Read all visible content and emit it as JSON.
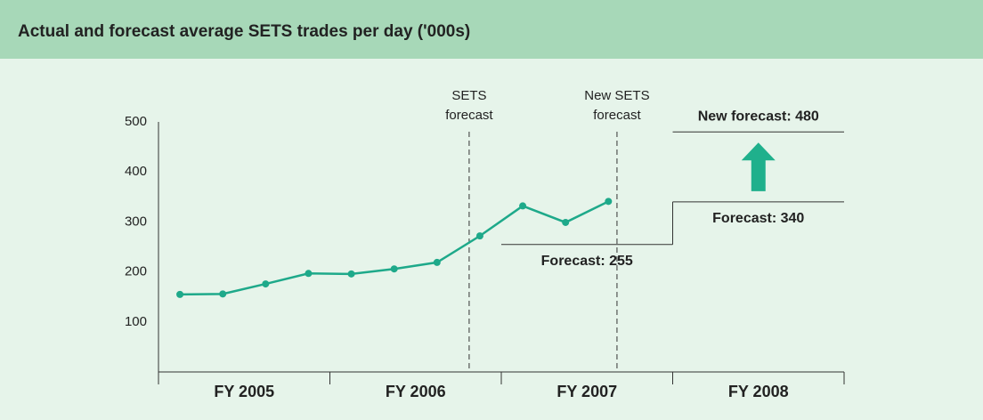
{
  "chart_data": {
    "type": "line",
    "title": "Actual and forecast average SETS trades per day ('000s)",
    "categories": [
      "FY 2005",
      "FY 2006",
      "FY 2007",
      "FY 2008"
    ],
    "x": [
      0.5,
      1.5,
      2.5,
      3.5,
      4.5,
      5.5,
      6.5,
      7.5,
      8.5,
      9.5,
      10.5
    ],
    "xlim": [
      0,
      16
    ],
    "series": [
      {
        "color": "#1ea98a",
        "values": [
          155,
          156,
          176,
          197,
          196,
          206,
          219,
          272,
          332,
          299,
          341
        ]
      }
    ],
    "ylim": [
      0,
      500
    ],
    "yticks": [
      100,
      200,
      300,
      400,
      500
    ],
    "markers": [
      {
        "x": 7.25,
        "lines": [
          "SETS",
          "forecast"
        ]
      },
      {
        "x": 10.7,
        "lines": [
          "New SETS",
          "forecast"
        ]
      }
    ],
    "forecasts": [
      {
        "label": "Forecast: 255",
        "value": 255,
        "x": [
          8,
          12
        ]
      },
      {
        "label": "Forecast: 340",
        "value": 340,
        "x": [
          12,
          16
        ]
      },
      {
        "label": "New forecast: 480",
        "value": 480,
        "x": [
          12,
          16
        ]
      }
    ]
  }
}
